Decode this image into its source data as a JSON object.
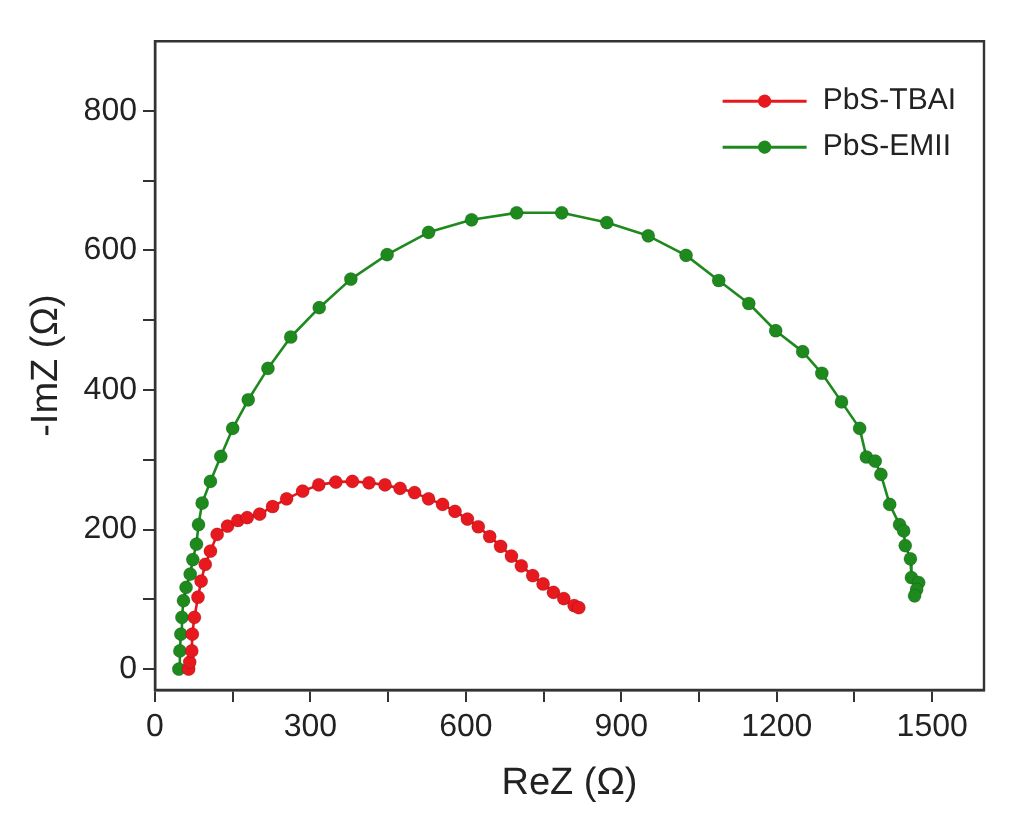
{
  "chart_data": {
    "type": "scatter",
    "xlabel": "ReZ (Ω)",
    "ylabel": "-ImZ (Ω)",
    "xlim": [
      0,
      1600
    ],
    "ylim": [
      -30,
      900
    ],
    "xticks": [
      0,
      {
        "value": 150,
        "label": null
      },
      300,
      {
        "value": 450,
        "label": null
      },
      600,
      {
        "value": 750,
        "label": null
      },
      900,
      {
        "value": 1050,
        "label": null
      },
      1200,
      {
        "value": 1350,
        "label": null
      },
      1500
    ],
    "yticks": [
      0,
      {
        "value": 100,
        "label": null
      },
      200,
      {
        "value": 300,
        "label": null
      },
      400,
      {
        "value": 500,
        "label": null
      },
      600,
      {
        "value": 700,
        "label": null
      },
      800
    ],
    "grid": false,
    "legend": "top right",
    "marker": "circle",
    "line_style": "solid",
    "series": [
      {
        "name": "PbS-TBAI",
        "color": "#e8191e",
        "type": "line",
        "x": [
          65,
          67,
          71,
          72,
          76,
          83,
          89,
          97,
          107,
          120,
          140,
          160,
          178,
          202,
          227,
          254,
          285,
          316,
          349,
          381,
          413,
          444,
          473,
          501,
          528,
          555,
          579,
          603,
          624,
          646,
          667,
          688,
          707,
          729,
          749,
          769,
          789,
          809,
          818
        ],
        "values": [
          0,
          10,
          26,
          50,
          74,
          103,
          126,
          150,
          169,
          193,
          205,
          213,
          217,
          222,
          233,
          244,
          255,
          264,
          268,
          269,
          267,
          264,
          259,
          253,
          244,
          236,
          226,
          215,
          204,
          190,
          176,
          162,
          148,
          134,
          122,
          110,
          101,
          91,
          88
        ]
      },
      {
        "name": "PbS-EMII",
        "color": "#1e8a1e",
        "type": "line",
        "x": [
          46,
          48,
          50,
          52,
          55,
          60,
          68,
          73,
          80,
          84,
          91,
          107,
          127,
          150,
          180,
          218,
          262,
          317,
          378,
          448,
          528,
          611,
          698,
          785,
          872,
          952,
          1025,
          1088,
          1146,
          1198,
          1250,
          1287,
          1325,
          1360,
          1373,
          1390,
          1401,
          1418,
          1437,
          1445,
          1448,
          1458,
          1460,
          1474,
          1470,
          1466
        ],
        "values": [
          0,
          26,
          50,
          74,
          98,
          117,
          136,
          157,
          179,
          207,
          238,
          269,
          305,
          345,
          386,
          431,
          476,
          518,
          559,
          594,
          626,
          644,
          654,
          654,
          640,
          621,
          593,
          557,
          524,
          485,
          455,
          424,
          383,
          345,
          304,
          298,
          279,
          236,
          207,
          198,
          177,
          158,
          131,
          124,
          114,
          105
        ]
      }
    ]
  }
}
